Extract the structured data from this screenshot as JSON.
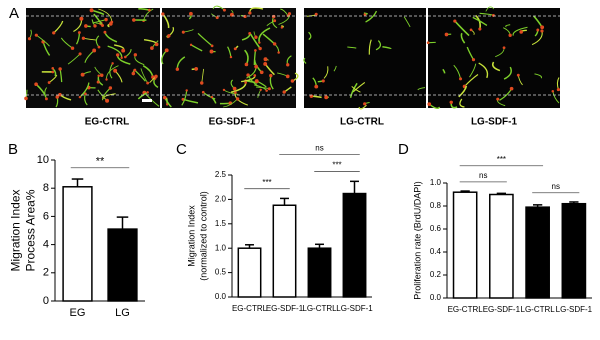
{
  "panel_a": {
    "label": "A",
    "captions": [
      "EG-CTRL",
      "EG-SDF-1",
      "LG-CTRL",
      "LG-SDF-1"
    ]
  },
  "chart_data": [
    {
      "type": "bar",
      "panel_label": "B",
      "ylabel": [
        "Migration Index",
        "Process Area%"
      ],
      "categories": [
        "EG",
        "LG"
      ],
      "values": [
        8.1,
        5.1
      ],
      "errors": [
        0.55,
        0.85
      ],
      "colors": [
        "#ffffff",
        "#000000"
      ],
      "ylim": [
        0,
        10
      ],
      "yticks": [
        0,
        2,
        4,
        6,
        8,
        10
      ],
      "annotations": [
        {
          "text": "**",
          "bars": [
            0,
            1
          ]
        }
      ]
    },
    {
      "type": "bar",
      "panel_label": "C",
      "ylabel": [
        "Migration Index",
        "(normalized to control)"
      ],
      "categories": [
        "EG-CTRL",
        "EG-SDF-1",
        "LG-CTRL",
        "LG-SDF-1"
      ],
      "values": [
        1.0,
        1.88,
        1.0,
        2.12
      ],
      "errors": [
        0.07,
        0.14,
        0.08,
        0.25
      ],
      "colors": [
        "#ffffff",
        "#ffffff",
        "#000000",
        "#000000"
      ],
      "ylim": [
        0,
        2.5
      ],
      "yticks": [
        {
          "value": 0,
          "label": "0.0"
        },
        0.5,
        {
          "value": 1,
          "label": "1.0"
        },
        1.5,
        {
          "value": 2,
          "label": "2.0"
        },
        2.5
      ],
      "annotations": [
        {
          "text": "***",
          "bars": [
            0,
            1
          ]
        },
        {
          "text": "***",
          "bars": [
            2,
            3
          ]
        },
        {
          "text": "ns",
          "bars": [
            1,
            3
          ]
        }
      ]
    },
    {
      "type": "bar",
      "panel_label": "D",
      "ylabel": [
        "Proliferation rate (BrdU/DAPI)"
      ],
      "categories": [
        "EG-CTRL",
        "EG-SDF-1",
        "LG-CTRL",
        "LG-SDF-1"
      ],
      "values": [
        0.92,
        0.9,
        0.79,
        0.82
      ],
      "errors": [
        0.01,
        0.01,
        0.02,
        0.015
      ],
      "colors": [
        "#ffffff",
        "#ffffff",
        "#000000",
        "#000000"
      ],
      "ylim": [
        0,
        1
      ],
      "yticks": [
        {
          "value": 0,
          "label": "0.0"
        },
        0.2,
        0.4,
        0.6,
        0.8,
        {
          "value": 1,
          "label": "1.0"
        }
      ],
      "annotations": [
        {
          "text": "ns",
          "bars": [
            0,
            1
          ]
        },
        {
          "text": "ns",
          "bars": [
            2,
            3
          ]
        },
        {
          "text": "***",
          "bars": [
            0,
            2
          ]
        }
      ]
    }
  ]
}
